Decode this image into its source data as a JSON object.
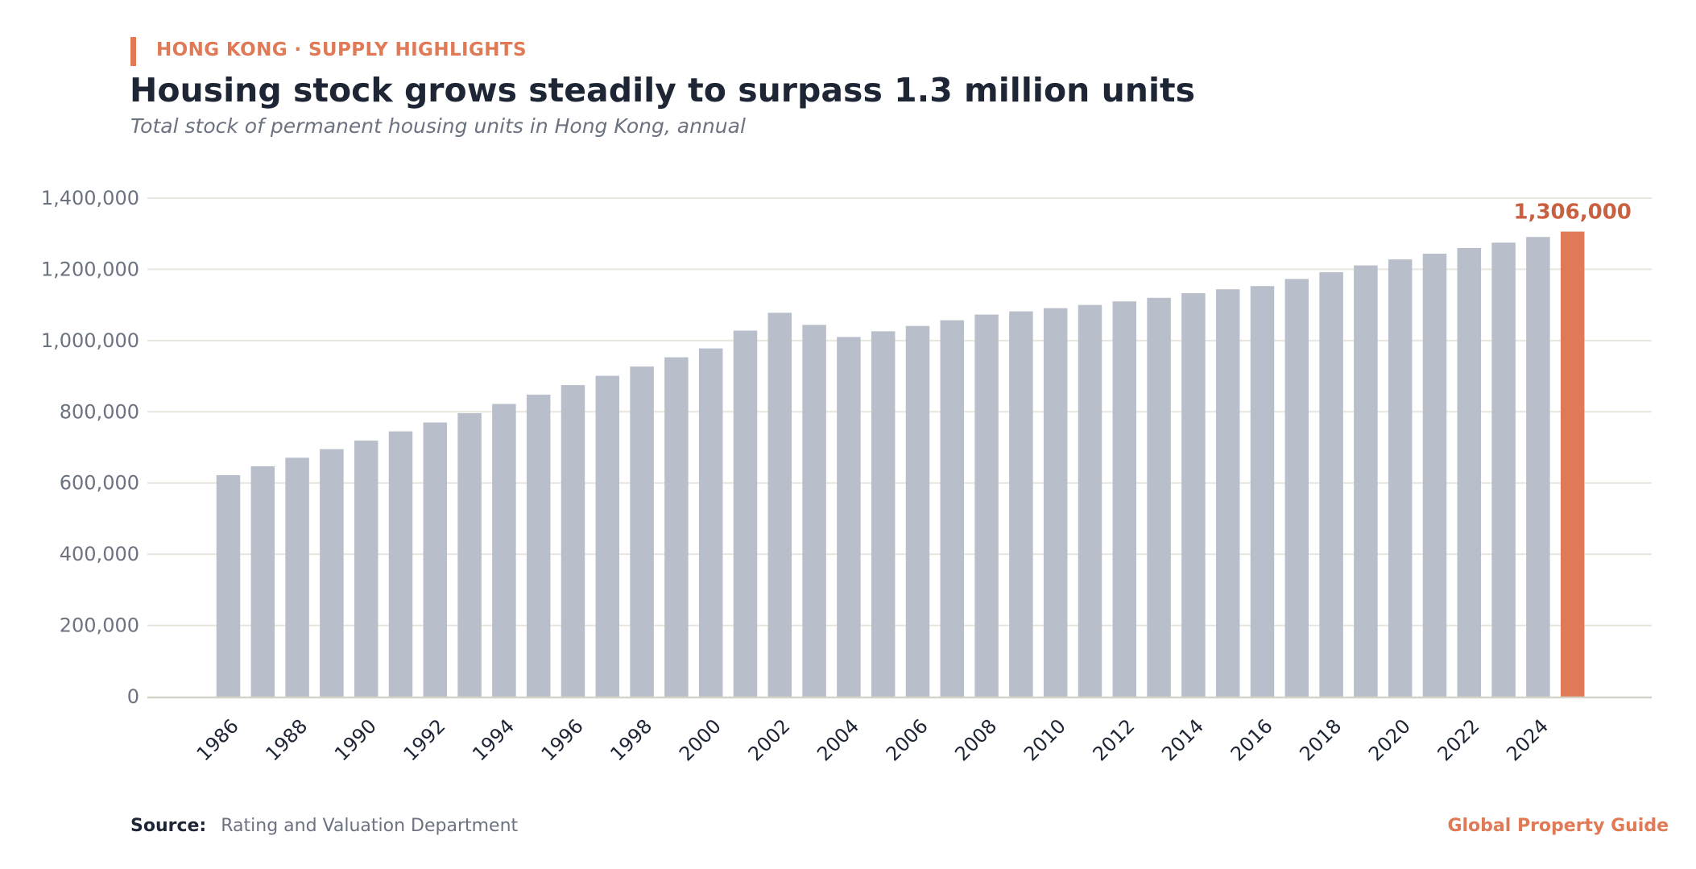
{
  "header": {
    "kicker": "HONG KONG · SUPPLY HIGHLIGHTS",
    "title": "Housing stock grows steadily to surpass 1.3 million units",
    "subtitle": "Total stock of permanent housing units in Hong Kong, annual"
  },
  "footer": {
    "source_label": "Source:",
    "source_text": "Rating and Valuation Department",
    "brand": "Global Property Guide"
  },
  "colors": {
    "bar": "#b8bfca",
    "highlight": "#e07a56",
    "highlight_label": "#c9603f",
    "grid": "#e7e5dc",
    "axis": "#d5d2c8",
    "tick_text": "#6b7280",
    "xtick_text": "#1e2636"
  },
  "chart_data": {
    "type": "bar",
    "title": "Housing stock grows steadily to surpass 1.3 million units",
    "xlabel": "",
    "ylabel": "",
    "ylim": [
      0,
      1400000
    ],
    "yticks": [
      "0",
      "200,000",
      "400,000",
      "600,000",
      "800,000",
      "1,000,000",
      "1,200,000",
      "1,400,000"
    ],
    "grid": true,
    "x": [
      1986,
      1987,
      1988,
      1989,
      1990,
      1991,
      1992,
      1993,
      1994,
      1995,
      1996,
      1997,
      1998,
      1999,
      2000,
      2001,
      2002,
      2003,
      2004,
      2005,
      2006,
      2007,
      2008,
      2009,
      2010,
      2011,
      2012,
      2013,
      2014,
      2015,
      2016,
      2017,
      2018,
      2019,
      2020,
      2021,
      2022,
      2023,
      2024,
      2025
    ],
    "xtick_labels": [
      "1986",
      "1988",
      "1990",
      "1992",
      "1994",
      "1996",
      "1998",
      "2000",
      "2002",
      "2004",
      "2006",
      "2008",
      "2010",
      "2012",
      "2014",
      "2016",
      "2018",
      "2020",
      "2022",
      "2024"
    ],
    "values": [
      622000,
      647000,
      671000,
      695000,
      719000,
      745000,
      770000,
      796000,
      822000,
      848000,
      875000,
      901000,
      927000,
      953000,
      978000,
      1028000,
      1078000,
      1044000,
      1010000,
      1026000,
      1041000,
      1057000,
      1073000,
      1082000,
      1091000,
      1100000,
      1110000,
      1120000,
      1133000,
      1144000,
      1153000,
      1173000,
      1192000,
      1211000,
      1228000,
      1244000,
      1260000,
      1275000,
      1291000,
      1306000
    ],
    "highlight_index": 39,
    "highlight_label": "1,306,000"
  }
}
